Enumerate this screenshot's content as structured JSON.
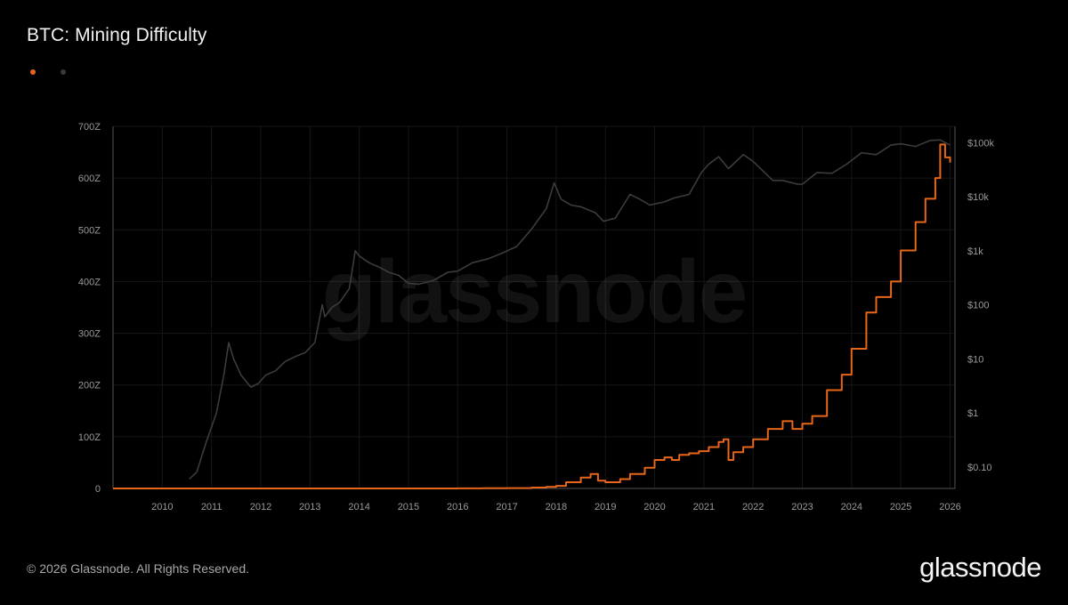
{
  "title": "BTC: Mining Difficulty",
  "footer": "© 2026 Glassnode. All Rights Reserved.",
  "brand": "glassnode",
  "watermark": "glassnode",
  "legend": [
    {
      "name": "",
      "color": "#e8661a"
    },
    {
      "name": "",
      "color": "#3a3a3a"
    }
  ],
  "colors": {
    "background": "#000000",
    "difficulty": "#e8661a",
    "price": "#3c3c3c",
    "grid": "#161616",
    "axis": "#555555"
  },
  "chart_data": {
    "type": "line",
    "title": "BTC: Mining Difficulty",
    "xlabel": "",
    "ylabel": "",
    "x_ticks": [
      "2010",
      "2011",
      "2012",
      "2013",
      "2014",
      "2015",
      "2016",
      "2017",
      "2018",
      "2019",
      "2020",
      "2021",
      "2022",
      "2023",
      "2024",
      "2025",
      "2026"
    ],
    "y_ticks_left": [
      "0",
      "100Z",
      "200Z",
      "300Z",
      "400Z",
      "500Z",
      "600Z",
      "700Z"
    ],
    "y_ticks_right": [
      "$0.10",
      "$1",
      "$10",
      "$100",
      "$1k",
      "$10k",
      "$100k"
    ],
    "xlim": [
      2009.0,
      2026.1
    ],
    "ylim_left": [
      0,
      700
    ],
    "ylim_right": [
      0.04,
      200000
    ],
    "y_right_scale": "log",
    "grid": true,
    "legend_position": "top-left",
    "series": [
      {
        "axis": "left",
        "color": "#e8661a",
        "step": true,
        "x": [
          2009.0,
          2016.0,
          2016.5,
          2017.0,
          2017.5,
          2017.8,
          2018.0,
          2018.2,
          2018.5,
          2018.7,
          2018.85,
          2019.0,
          2019.3,
          2019.5,
          2019.8,
          2020.0,
          2020.2,
          2020.35,
          2020.5,
          2020.7,
          2020.9,
          2021.1,
          2021.3,
          2021.4,
          2021.5,
          2021.6,
          2021.8,
          2022.0,
          2022.3,
          2022.6,
          2022.8,
          2023.0,
          2023.2,
          2023.5,
          2023.8,
          2024.0,
          2024.3,
          2024.5,
          2024.8,
          2025.0,
          2025.3,
          2025.5,
          2025.7,
          2025.8,
          2025.9,
          2026.0
        ],
        "y": [
          0,
          0.2,
          0.4,
          0.7,
          1.8,
          3,
          5,
          12,
          21,
          28,
          15,
          12,
          18,
          28,
          40,
          55,
          60,
          55,
          65,
          68,
          72,
          80,
          90,
          95,
          55,
          70,
          80,
          95,
          115,
          130,
          115,
          125,
          140,
          190,
          220,
          270,
          340,
          370,
          400,
          460,
          515,
          560,
          600,
          665,
          640,
          630
        ]
      },
      {
        "axis": "right",
        "color": "#3c3c3c",
        "step": false,
        "x": [
          2010.55,
          2010.7,
          2010.9,
          2011.1,
          2011.25,
          2011.35,
          2011.45,
          2011.6,
          2011.8,
          2011.95,
          2012.1,
          2012.3,
          2012.5,
          2012.7,
          2012.9,
          2013.1,
          2013.25,
          2013.3,
          2013.45,
          2013.6,
          2013.8,
          2013.92,
          2014.0,
          2014.2,
          2014.4,
          2014.6,
          2014.8,
          2015.0,
          2015.2,
          2015.5,
          2015.8,
          2016.0,
          2016.3,
          2016.6,
          2016.9,
          2017.2,
          2017.5,
          2017.8,
          2017.96,
          2018.1,
          2018.3,
          2018.5,
          2018.8,
          2018.96,
          2019.2,
          2019.5,
          2019.7,
          2019.9,
          2020.2,
          2020.4,
          2020.7,
          2020.95,
          2021.1,
          2021.3,
          2021.5,
          2021.8,
          2022.0,
          2022.2,
          2022.4,
          2022.6,
          2022.9,
          2023.0,
          2023.3,
          2023.6,
          2023.9,
          2024.2,
          2024.5,
          2024.8,
          2025.0,
          2025.3,
          2025.6,
          2025.8,
          2026.0
        ],
        "y": [
          0.06,
          0.08,
          0.3,
          1,
          5,
          20,
          10,
          5,
          3,
          3.5,
          5,
          6,
          9,
          11,
          13,
          20,
          100,
          60,
          90,
          110,
          200,
          1000,
          800,
          600,
          500,
          400,
          350,
          250,
          240,
          280,
          400,
          420,
          600,
          700,
          900,
          1200,
          2500,
          6000,
          18000,
          9000,
          7000,
          6500,
          5000,
          3500,
          4000,
          11000,
          9000,
          7000,
          8000,
          9500,
          11000,
          28000,
          40000,
          55000,
          33000,
          60000,
          45000,
          30000,
          20000,
          20000,
          17000,
          17000,
          28000,
          27000,
          40000,
          65000,
          60000,
          90000,
          95000,
          85000,
          110000,
          112000,
          90000
        ]
      }
    ]
  }
}
